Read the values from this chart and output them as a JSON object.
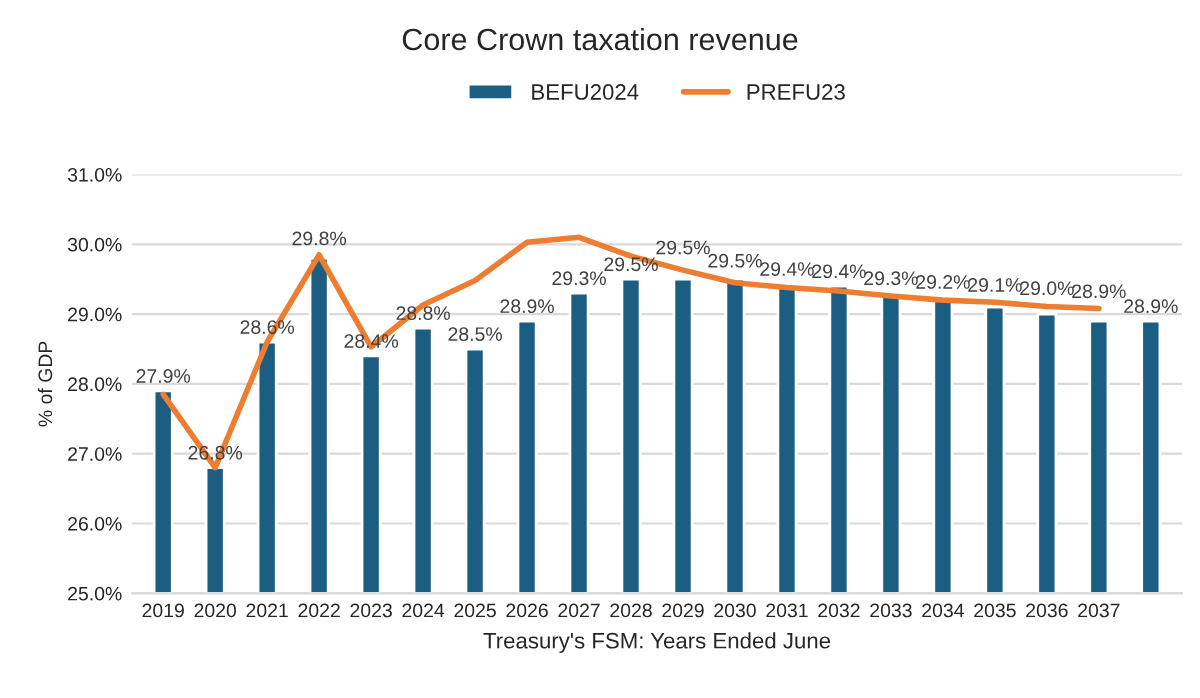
{
  "chart_data": {
    "type": "bar",
    "title": "Core Crown taxation revenue",
    "xlabel": "Treasury's FSM: Years Ended June",
    "ylabel": "% of GDP",
    "categories": [
      "2019",
      "2020",
      "2021",
      "2022",
      "2023",
      "2024",
      "2025",
      "2026",
      "2027",
      "2028",
      "2029",
      "2030",
      "2031",
      "2032",
      "2033",
      "2034",
      "2035",
      "2036",
      "2037",
      null
    ],
    "series": [
      {
        "name": "BEFU2024",
        "type": "bar",
        "color": "#1b5e82",
        "values": [
          27.9,
          26.8,
          28.6,
          29.8,
          28.4,
          28.8,
          28.5,
          28.9,
          29.3,
          29.5,
          29.5,
          29.5,
          29.4,
          29.4,
          29.3,
          29.2,
          29.1,
          29.0,
          28.9,
          28.9
        ],
        "value_labels": [
          "27.9%",
          "26.8%",
          "28.6%",
          "29.8%",
          "28.4%",
          "28.8%",
          "28.5%",
          "28.9%",
          "29.3%",
          "29.5%",
          "29.5%",
          "29.5%",
          "29.4%",
          "29.4%",
          "29.3%",
          "29.2%",
          "29.1%",
          "29.0%",
          "28.9%",
          "28.9%"
        ]
      },
      {
        "name": "PREFU23",
        "type": "line",
        "color": "#ed7d31",
        "values": [
          27.85,
          26.8,
          28.6,
          29.85,
          28.53,
          29.13,
          29.48,
          30.03,
          30.1,
          29.83,
          29.63,
          29.45,
          29.38,
          29.33,
          29.26,
          29.2,
          29.17,
          29.11,
          29.08,
          null
        ]
      }
    ],
    "ylim": [
      25,
      31
    ],
    "yticks": [
      {
        "value": 25,
        "label": "25.0%"
      },
      {
        "value": 26,
        "label": "26.0%"
      },
      {
        "value": 27,
        "label": "27.0%"
      },
      {
        "value": 28,
        "label": "28.0%"
      },
      {
        "value": 29,
        "label": "29.0%"
      },
      {
        "value": 30,
        "label": "30.0%"
      },
      {
        "value": 31,
        "label": "31.0%"
      }
    ],
    "grid": "y",
    "legend": "top",
    "marker": "none",
    "line_style": "solid"
  }
}
